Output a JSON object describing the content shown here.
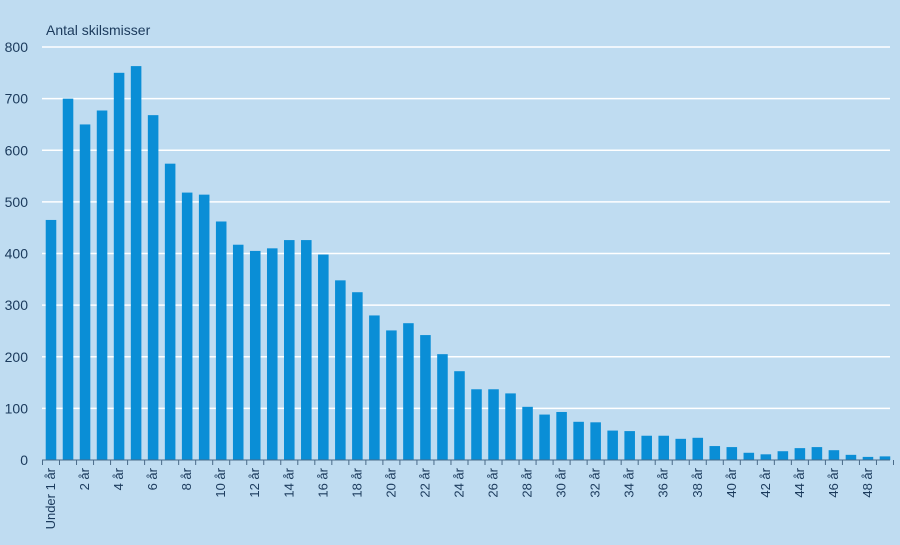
{
  "chart_data": {
    "type": "bar",
    "ylabel": "Antal skilsmisser",
    "xlabel": "",
    "ylim": [
      0,
      800
    ],
    "yticks": [
      0,
      100,
      200,
      300,
      400,
      500,
      600,
      700,
      800
    ],
    "grid": true,
    "bar_color": "#0a8ed6",
    "grid_color": "#ffffff",
    "background_color": "#bfdcf1",
    "categories": [
      "Under 1 år",
      "1 år",
      "2 år",
      "3 år",
      "4 år",
      "5 år",
      "6 år",
      "7 år",
      "8 år",
      "9 år",
      "10 år",
      "11 år",
      "12 år",
      "13 år",
      "14 år",
      "15 år",
      "16 år",
      "17 år",
      "18 år",
      "19 år",
      "20 år",
      "21 år",
      "22 år",
      "23 år",
      "24 år",
      "25 år",
      "26 år",
      "27 år",
      "28 år",
      "29 år",
      "30 år",
      "31 år",
      "32 år",
      "33 år",
      "34 år",
      "35 år",
      "36 år",
      "37 år",
      "38 år",
      "39 år",
      "40 år",
      "41 år",
      "42 år",
      "43 år",
      "44 år",
      "45 år",
      "46 år",
      "47 år",
      "48 år",
      "49 år"
    ],
    "shown_tick_labels": [
      "Under 1 år",
      "2 år",
      "4 år",
      "6 år",
      "8 år",
      "10 år",
      "12 år",
      "14 år",
      "16 år",
      "18 år",
      "20 år",
      "22 år",
      "24 år",
      "26 år",
      "28 år",
      "30 år",
      "32 år",
      "34 år",
      "36 år",
      "38 år",
      "40 år",
      "42 år",
      "44 år",
      "46 år",
      "48 år"
    ],
    "values": [
      465,
      700,
      650,
      677,
      750,
      763,
      668,
      574,
      518,
      514,
      462,
      417,
      405,
      410,
      426,
      426,
      398,
      348,
      325,
      280,
      251,
      265,
      242,
      205,
      172,
      137,
      137,
      129,
      103,
      88,
      93,
      74,
      73,
      57,
      56,
      47,
      47,
      41,
      43,
      27,
      25,
      14,
      11,
      17,
      23,
      25,
      19,
      10,
      6,
      7
    ]
  }
}
